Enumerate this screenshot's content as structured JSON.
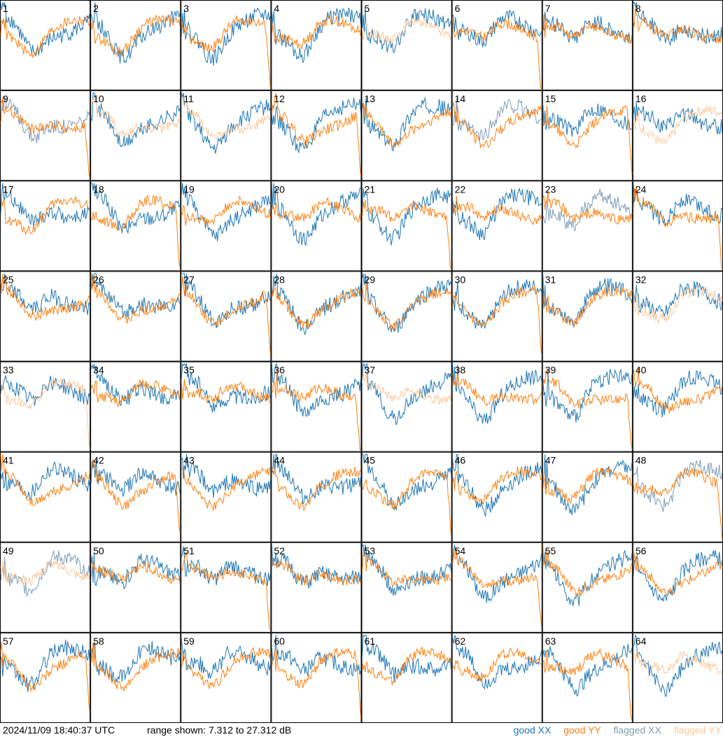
{
  "chart_data": {
    "type": "line",
    "layout": "small-multiples 8x8",
    "panels": [
      "1",
      "2",
      "3",
      "4",
      "5",
      "6",
      "7",
      "8",
      "9",
      "10",
      "11",
      "12",
      "13",
      "14",
      "15",
      "16",
      "17",
      "18",
      "19",
      "20",
      "21",
      "22",
      "23",
      "24",
      "25",
      "26",
      "27",
      "28",
      "29",
      "30",
      "31",
      "32",
      "33",
      "34",
      "35",
      "36",
      "37",
      "38",
      "39",
      "40",
      "41",
      "42",
      "43",
      "44",
      "45",
      "46",
      "47",
      "48",
      "49",
      "50",
      "51",
      "52",
      "53",
      "54",
      "55",
      "56",
      "57",
      "58",
      "59",
      "60",
      "61",
      "62",
      "63",
      "64"
    ],
    "y_range_db": [
      7.312,
      27.312
    ],
    "series": [
      {
        "name": "good XX",
        "color": "#1f77b4"
      },
      {
        "name": "good YY",
        "color": "#ff7f0e"
      },
      {
        "name": "flagged XX",
        "color": "#7e9bb8"
      },
      {
        "name": "flagged YY",
        "color": "#fcc89b"
      }
    ],
    "flagged_xx_panels": [
      9,
      14,
      23,
      48,
      49
    ],
    "flagged_yy_panels": [
      5,
      10,
      11,
      16,
      32,
      33,
      37,
      49,
      64
    ]
  },
  "footer": {
    "timestamp": "2024/11/09 18:40:37 UTC",
    "range": "range shown: 7.312 to 27.312 dB"
  },
  "legend": {
    "good_xx": "good XX",
    "good_yy": "good YY",
    "flagged_xx": "flagged XX",
    "flagged_yy": "flagged YY"
  }
}
